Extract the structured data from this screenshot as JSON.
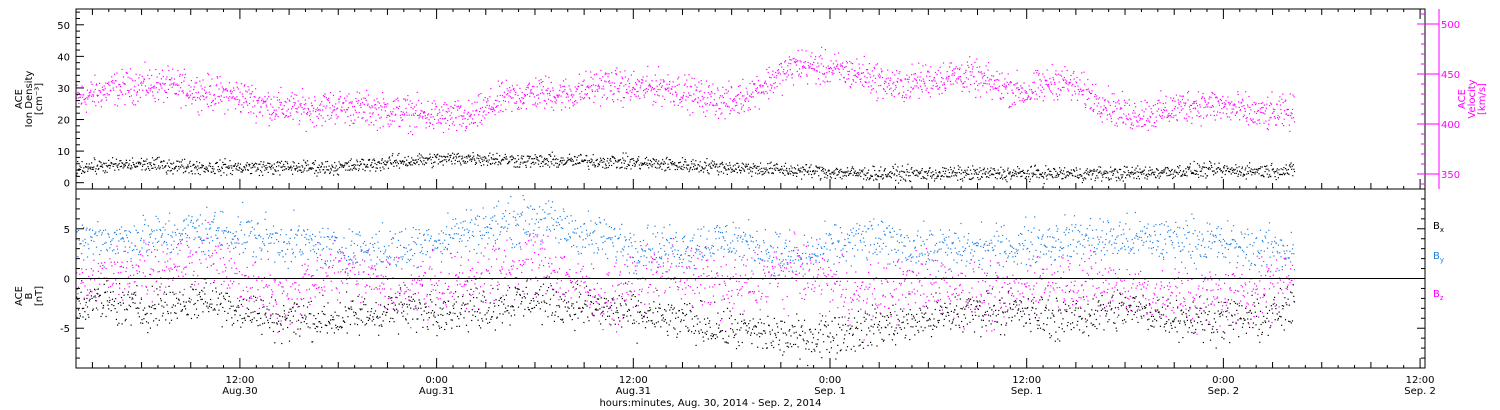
{
  "figure": {
    "xlabel": "hours:minutes, Aug. 30, 2014 - Sep.  2, 2014",
    "xticks": [
      {
        "time": "12:00",
        "date": "Aug.30",
        "hours": 12
      },
      {
        "time": "0:00",
        "date": "Aug.31",
        "hours": 24
      },
      {
        "time": "12:00",
        "date": "Aug.31",
        "hours": 36
      },
      {
        "time": "0:00",
        "date": "Sep.  1",
        "hours": 48
      },
      {
        "time": "12:00",
        "date": "Sep.  1",
        "hours": 60
      },
      {
        "time": "0:00",
        "date": "Sep.  2",
        "hours": 72
      },
      {
        "time": "12:00",
        "date": "Sep.  2",
        "hours": 84
      }
    ],
    "xlim_hours": [
      2,
      84.3
    ],
    "data_end_hours": 76.3
  },
  "chart_data": [
    {
      "type": "scatter",
      "panel": "plasma",
      "ylabel_left": [
        "ACE",
        "Ion Density",
        "[cm⁻³]"
      ],
      "ylabel_right": [
        "ACE",
        "Velocity",
        "[km/s]"
      ],
      "left_axis": {
        "ylim": [
          -2,
          55
        ],
        "ticks": [
          0,
          10,
          20,
          30,
          40,
          50
        ],
        "color": "#000000"
      },
      "right_axis": {
        "ylim": [
          335,
          515
        ],
        "ticks": [
          350,
          400,
          450,
          500
        ],
        "color": "#ff00ff"
      },
      "series": [
        {
          "axis": "left",
          "color": "#000000",
          "x": [
            2,
            6,
            10,
            14,
            18,
            22,
            26,
            30,
            34,
            38,
            42,
            46,
            50,
            54,
            58,
            62,
            66,
            70,
            74,
            76.3
          ],
          "values": [
            5,
            6,
            5,
            5,
            5,
            7,
            8,
            7,
            7,
            6,
            5,
            4,
            3,
            3,
            3,
            3,
            3,
            4,
            4,
            4
          ]
        },
        {
          "axis": "right",
          "color": "#ff00ff",
          "x": [
            2,
            4,
            6,
            8,
            10,
            12,
            14,
            16,
            18,
            20,
            22,
            24,
            26,
            28,
            30,
            32,
            34,
            36,
            38,
            40,
            42,
            44,
            46,
            48,
            50,
            52,
            54,
            56,
            58,
            60,
            62,
            64,
            66,
            68,
            70,
            72,
            74,
            76.3
          ],
          "values": [
            425,
            435,
            440,
            438,
            432,
            428,
            418,
            415,
            418,
            415,
            412,
            408,
            406,
            425,
            432,
            430,
            440,
            436,
            438,
            428,
            422,
            440,
            460,
            455,
            450,
            438,
            445,
            450,
            440,
            432,
            445,
            428,
            410,
            412,
            420,
            418,
            410,
            412
          ]
        }
      ]
    },
    {
      "type": "scatter",
      "panel": "magnetic-field",
      "ylabel_left": [
        "ACE",
        "B",
        "[nT]"
      ],
      "ylim": [
        -9,
        9
      ],
      "ticks": [
        -5,
        0,
        5
      ],
      "zero_line": true,
      "series": [
        {
          "name": "Bx",
          "label": "B",
          "sub": "x",
          "color": "#000000",
          "x": [
            2,
            6,
            10,
            14,
            18,
            22,
            26,
            30,
            34,
            38,
            42,
            46,
            50,
            54,
            58,
            62,
            66,
            70,
            74,
            76.3
          ],
          "values": [
            -2,
            -3,
            -2,
            -4,
            -4,
            -3,
            -3,
            -2,
            -3,
            -4,
            -5,
            -6,
            -5,
            -4,
            -3,
            -4,
            -3,
            -4,
            -4,
            -3
          ]
        },
        {
          "name": "By",
          "label": "B",
          "sub": "y",
          "color": "#1f7fe0",
          "x": [
            2,
            6,
            10,
            14,
            18,
            22,
            26,
            30,
            34,
            38,
            42,
            46,
            50,
            54,
            58,
            62,
            66,
            70,
            74,
            76.3
          ],
          "values": [
            4,
            4,
            5,
            4,
            3,
            3,
            5,
            6,
            4,
            3,
            4,
            2,
            4,
            3,
            3,
            4,
            4,
            4,
            3,
            3
          ]
        },
        {
          "name": "Bz",
          "label": "B",
          "sub": "z",
          "color": "#ff00ff",
          "x": [
            2,
            6,
            10,
            14,
            18,
            22,
            26,
            30,
            34,
            38,
            42,
            46,
            50,
            54,
            58,
            62,
            66,
            70,
            74,
            76.3
          ],
          "values": [
            -1,
            1,
            2,
            -2,
            1,
            -1,
            0,
            2,
            -2,
            1,
            -1,
            1,
            -2,
            0,
            -2,
            0,
            -1,
            -2,
            -1,
            0
          ]
        }
      ]
    }
  ]
}
